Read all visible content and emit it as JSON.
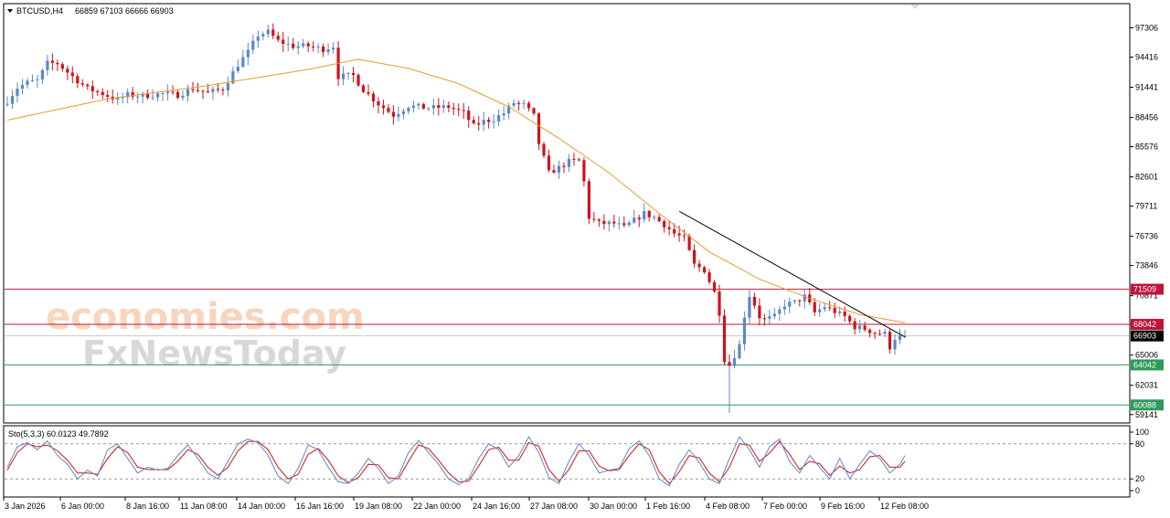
{
  "window": {
    "symbol_header": "BTCUSD,H4",
    "ohlc_header": "66859 67103 66666 66903",
    "indicator_header": "Sto(5,3,3) 60.0123 49.7892"
  },
  "watermark": {
    "line1": "economies.com",
    "line2": "FxNewsToday"
  },
  "colors": {
    "bull": "#5b88c8",
    "bear": "#d0121b",
    "ma": "#e59b2e",
    "resistance": "#c0143c",
    "support": "#2e9a5a",
    "current": "#000000",
    "stoch_main": "#5b88c8",
    "stoch_signal": "#d0121b"
  },
  "chart_data": {
    "type": "line",
    "symbol": "BTCUSD",
    "timeframe": "H4",
    "ohlc": {
      "open": 66859,
      "high": 67103,
      "low": 66666,
      "close": 66903
    },
    "y_tick_labels": [
      "97306",
      "94416",
      "91441",
      "88456",
      "85576",
      "82601",
      "79711",
      "76736",
      "73846",
      "70871",
      "68042",
      "65006",
      "62031",
      "59141"
    ],
    "y_ticks": [
      97306,
      94416,
      91441,
      88456,
      85576,
      82601,
      79711,
      76736,
      73846,
      70871,
      68042,
      65006,
      62031,
      59141
    ],
    "ylim": [
      58400,
      99600
    ],
    "x_tick_labels": [
      "3 Jan 2026",
      "6 Jan 00:00",
      "8 Jan 16:00",
      "11 Jan 08:00",
      "14 Jan 00:00",
      "16 Jan 16:00",
      "19 Jan 08:00",
      "22 Jan 00:00",
      "24 Jan 16:00",
      "27 Jan 08:00",
      "30 Jan 00:00",
      "1 Feb 16:00",
      "4 Feb 08:00",
      "7 Feb 00:00",
      "9 Feb 16:00",
      "12 Feb 08:00"
    ],
    "price_path": [
      [
        0,
        90100
      ],
      [
        2,
        91400
      ],
      [
        4,
        91900
      ],
      [
        6,
        92100
      ],
      [
        8,
        93800
      ],
      [
        10,
        93800
      ],
      [
        13,
        92500
      ],
      [
        16,
        91300
      ],
      [
        19,
        90800
      ],
      [
        22,
        90200
      ],
      [
        24,
        90700
      ],
      [
        27,
        90600
      ],
      [
        31,
        90800
      ],
      [
        34,
        90700
      ],
      [
        37,
        91300
      ],
      [
        40,
        90900
      ],
      [
        43,
        91300
      ],
      [
        46,
        93700
      ],
      [
        48,
        94900
      ],
      [
        50,
        96600
      ],
      [
        52,
        96900
      ],
      [
        54,
        96000
      ],
      [
        57,
        95500
      ],
      [
        60,
        95500
      ],
      [
        63,
        95200
      ],
      [
        65,
        95500
      ],
      [
        66,
        92500
      ],
      [
        69,
        92600
      ],
      [
        71,
        91200
      ],
      [
        74,
        89800
      ],
      [
        77,
        88700
      ],
      [
        80,
        89600
      ],
      [
        84,
        89400
      ],
      [
        88,
        89500
      ],
      [
        91,
        88900
      ],
      [
        93,
        87600
      ],
      [
        95,
        88100
      ],
      [
        97,
        88300
      ],
      [
        99,
        88900
      ],
      [
        101,
        89900
      ],
      [
        103,
        89700
      ],
      [
        105,
        88600
      ],
      [
        106,
        85900
      ],
      [
        108,
        83000
      ],
      [
        110,
        83500
      ],
      [
        112,
        84100
      ],
      [
        114,
        84200
      ],
      [
        115,
        82100
      ],
      [
        116,
        78600
      ],
      [
        118,
        78000
      ],
      [
        121,
        78000
      ],
      [
        123,
        77600
      ],
      [
        125,
        78300
      ],
      [
        127,
        79000
      ],
      [
        129,
        78600
      ],
      [
        131,
        77900
      ],
      [
        133,
        77000
      ],
      [
        135,
        76500
      ],
      [
        137,
        73900
      ],
      [
        139,
        73400
      ],
      [
        141,
        71200
      ],
      [
        142,
        69200
      ],
      [
        143,
        64600
      ],
      [
        144,
        64000
      ],
      [
        146,
        66000
      ],
      [
        147,
        68900
      ],
      [
        148,
        70900
      ],
      [
        149,
        70000
      ],
      [
        150,
        68800
      ],
      [
        151,
        68500
      ],
      [
        153,
        68800
      ],
      [
        155,
        70000
      ],
      [
        157,
        70200
      ],
      [
        159,
        70800
      ],
      [
        161,
        69200
      ],
      [
        163,
        69800
      ],
      [
        165,
        69300
      ],
      [
        167,
        68800
      ],
      [
        169,
        67800
      ],
      [
        171,
        67600
      ],
      [
        173,
        67200
      ],
      [
        175,
        67100
      ],
      [
        176,
        65800
      ],
      [
        177,
        66700
      ],
      [
        179,
        66900
      ]
    ],
    "moving_average": [
      [
        0,
        88200
      ],
      [
        20,
        90300
      ],
      [
        40,
        91600
      ],
      [
        60,
        93200
      ],
      [
        70,
        94200
      ],
      [
        80,
        93300
      ],
      [
        90,
        91800
      ],
      [
        100,
        89500
      ],
      [
        110,
        86400
      ],
      [
        120,
        83000
      ],
      [
        130,
        79000
      ],
      [
        140,
        75200
      ],
      [
        150,
        72500
      ],
      [
        160,
        70600
      ],
      [
        170,
        69000
      ],
      [
        179,
        68200
      ]
    ],
    "trendline": [
      [
        134,
        79200
      ],
      [
        179,
        66800
      ]
    ],
    "horizontal_levels": [
      {
        "value": 71509,
        "label": "71509",
        "kind": "resistance"
      },
      {
        "value": 68042,
        "label": "68042",
        "kind": "resistance"
      },
      {
        "value": 66903,
        "label": "66903",
        "kind": "current"
      },
      {
        "value": 64042,
        "label": "64042",
        "kind": "support"
      },
      {
        "value": 60088,
        "label": "60088",
        "kind": "support"
      }
    ],
    "stochastic": {
      "params": "5,3,3",
      "main_value": 60.0123,
      "signal_value": 49.7892,
      "levels": [
        80,
        20
      ],
      "axis_labels": [
        "100",
        "80",
        "20",
        "0"
      ],
      "ylim": [
        0,
        100
      ],
      "main": [
        [
          0,
          40
        ],
        [
          2,
          75
        ],
        [
          4,
          82
        ],
        [
          6,
          70
        ],
        [
          8,
          85
        ],
        [
          10,
          60
        ],
        [
          12,
          45
        ],
        [
          14,
          20
        ],
        [
          16,
          35
        ],
        [
          18,
          25
        ],
        [
          20,
          70
        ],
        [
          22,
          80
        ],
        [
          24,
          55
        ],
        [
          26,
          30
        ],
        [
          28,
          40
        ],
        [
          30,
          35
        ],
        [
          32,
          38
        ],
        [
          34,
          60
        ],
        [
          36,
          78
        ],
        [
          38,
          55
        ],
        [
          40,
          30
        ],
        [
          42,
          20
        ],
        [
          44,
          50
        ],
        [
          46,
          80
        ],
        [
          48,
          88
        ],
        [
          50,
          82
        ],
        [
          52,
          60
        ],
        [
          54,
          25
        ],
        [
          56,
          12
        ],
        [
          58,
          38
        ],
        [
          60,
          78
        ],
        [
          62,
          70
        ],
        [
          64,
          40
        ],
        [
          66,
          15
        ],
        [
          68,
          12
        ],
        [
          70,
          30
        ],
        [
          72,
          55
        ],
        [
          74,
          38
        ],
        [
          76,
          12
        ],
        [
          78,
          25
        ],
        [
          80,
          65
        ],
        [
          82,
          86
        ],
        [
          84,
          65
        ],
        [
          86,
          45
        ],
        [
          88,
          20
        ],
        [
          90,
          10
        ],
        [
          92,
          20
        ],
        [
          94,
          55
        ],
        [
          96,
          80
        ],
        [
          98,
          70
        ],
        [
          100,
          40
        ],
        [
          102,
          60
        ],
        [
          104,
          92
        ],
        [
          106,
          65
        ],
        [
          108,
          22
        ],
        [
          110,
          12
        ],
        [
          112,
          50
        ],
        [
          114,
          80
        ],
        [
          116,
          60
        ],
        [
          118,
          30
        ],
        [
          120,
          35
        ],
        [
          122,
          38
        ],
        [
          124,
          72
        ],
        [
          126,
          85
        ],
        [
          128,
          60
        ],
        [
          130,
          20
        ],
        [
          132,
          8
        ],
        [
          134,
          45
        ],
        [
          136,
          70
        ],
        [
          138,
          48
        ],
        [
          140,
          20
        ],
        [
          142,
          12
        ],
        [
          144,
          55
        ],
        [
          146,
          92
        ],
        [
          148,
          70
        ],
        [
          150,
          40
        ],
        [
          152,
          75
        ],
        [
          154,
          88
        ],
        [
          156,
          50
        ],
        [
          158,
          30
        ],
        [
          160,
          60
        ],
        [
          162,
          40
        ],
        [
          164,
          20
        ],
        [
          166,
          55
        ],
        [
          168,
          20
        ],
        [
          170,
          45
        ],
        [
          172,
          68
        ],
        [
          174,
          55
        ],
        [
          176,
          30
        ],
        [
          178,
          45
        ],
        [
          179,
          60
        ]
      ],
      "signal": [
        [
          0,
          35
        ],
        [
          2,
          65
        ],
        [
          4,
          80
        ],
        [
          6,
          75
        ],
        [
          8,
          78
        ],
        [
          10,
          68
        ],
        [
          12,
          52
        ],
        [
          14,
          30
        ],
        [
          16,
          30
        ],
        [
          18,
          28
        ],
        [
          20,
          55
        ],
        [
          22,
          75
        ],
        [
          24,
          65
        ],
        [
          26,
          40
        ],
        [
          28,
          36
        ],
        [
          30,
          36
        ],
        [
          32,
          36
        ],
        [
          34,
          50
        ],
        [
          36,
          70
        ],
        [
          38,
          62
        ],
        [
          40,
          40
        ],
        [
          42,
          26
        ],
        [
          44,
          40
        ],
        [
          46,
          68
        ],
        [
          48,
          84
        ],
        [
          50,
          84
        ],
        [
          52,
          70
        ],
        [
          54,
          40
        ],
        [
          56,
          20
        ],
        [
          58,
          28
        ],
        [
          60,
          62
        ],
        [
          62,
          72
        ],
        [
          64,
          52
        ],
        [
          66,
          25
        ],
        [
          68,
          14
        ],
        [
          70,
          22
        ],
        [
          72,
          45
        ],
        [
          74,
          44
        ],
        [
          76,
          22
        ],
        [
          78,
          20
        ],
        [
          80,
          50
        ],
        [
          82,
          78
        ],
        [
          84,
          72
        ],
        [
          86,
          52
        ],
        [
          88,
          30
        ],
        [
          90,
          15
        ],
        [
          92,
          16
        ],
        [
          94,
          42
        ],
        [
          96,
          70
        ],
        [
          98,
          74
        ],
        [
          100,
          52
        ],
        [
          102,
          52
        ],
        [
          104,
          82
        ],
        [
          106,
          76
        ],
        [
          108,
          36
        ],
        [
          110,
          16
        ],
        [
          112,
          36
        ],
        [
          114,
          68
        ],
        [
          116,
          68
        ],
        [
          118,
          42
        ],
        [
          120,
          34
        ],
        [
          122,
          36
        ],
        [
          124,
          60
        ],
        [
          126,
          80
        ],
        [
          128,
          70
        ],
        [
          130,
          32
        ],
        [
          132,
          12
        ],
        [
          134,
          32
        ],
        [
          136,
          60
        ],
        [
          138,
          56
        ],
        [
          140,
          30
        ],
        [
          142,
          15
        ],
        [
          144,
          40
        ],
        [
          146,
          80
        ],
        [
          148,
          78
        ],
        [
          150,
          50
        ],
        [
          152,
          64
        ],
        [
          154,
          84
        ],
        [
          156,
          62
        ],
        [
          158,
          36
        ],
        [
          160,
          50
        ],
        [
          162,
          46
        ],
        [
          164,
          26
        ],
        [
          166,
          42
        ],
        [
          168,
          30
        ],
        [
          170,
          36
        ],
        [
          172,
          58
        ],
        [
          174,
          60
        ],
        [
          176,
          40
        ],
        [
          178,
          40
        ],
        [
          179,
          50
        ]
      ]
    }
  }
}
